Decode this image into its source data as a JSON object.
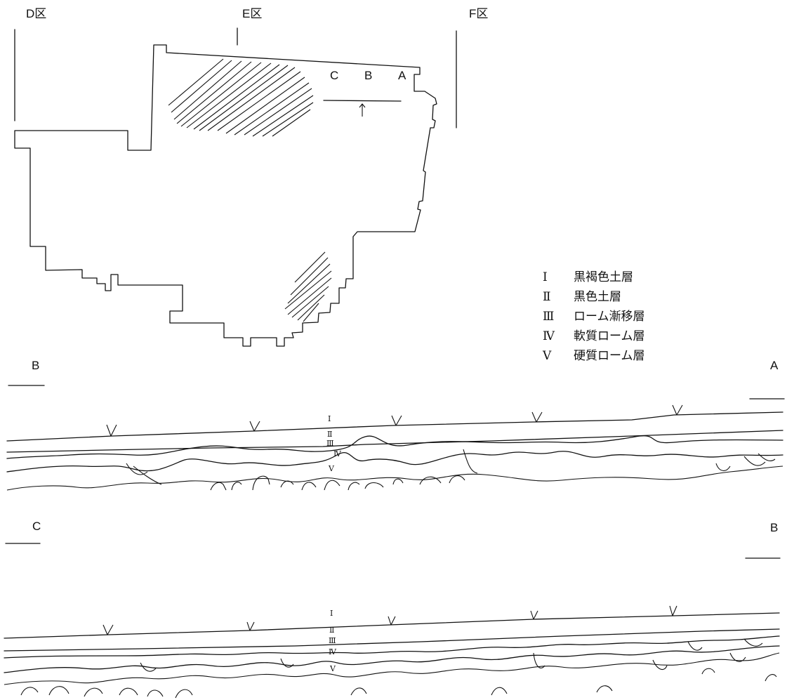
{
  "area_labels": {
    "d": "D区",
    "e": "E区",
    "f": "F区"
  },
  "plan_points": {
    "c": "C",
    "b": "B",
    "a": "A"
  },
  "legend": [
    {
      "num": "Ⅰ",
      "text": "黒褐色土層"
    },
    {
      "num": "Ⅱ",
      "text": "黒色土層"
    },
    {
      "num": "Ⅲ",
      "text": "ローム漸移層"
    },
    {
      "num": "Ⅳ",
      "text": "軟質ローム層"
    },
    {
      "num": "Ⅴ",
      "text": "硬質ローム層"
    }
  ],
  "section1": {
    "left": "B",
    "right": "A",
    "layers": [
      "Ⅰ",
      "Ⅱ",
      "Ⅲ",
      "Ⅳ",
      "Ⅴ"
    ]
  },
  "section2": {
    "left": "C",
    "right": "B",
    "layers": [
      "Ⅰ",
      "Ⅱ",
      "Ⅲ",
      "Ⅳ",
      "Ⅴ"
    ]
  }
}
